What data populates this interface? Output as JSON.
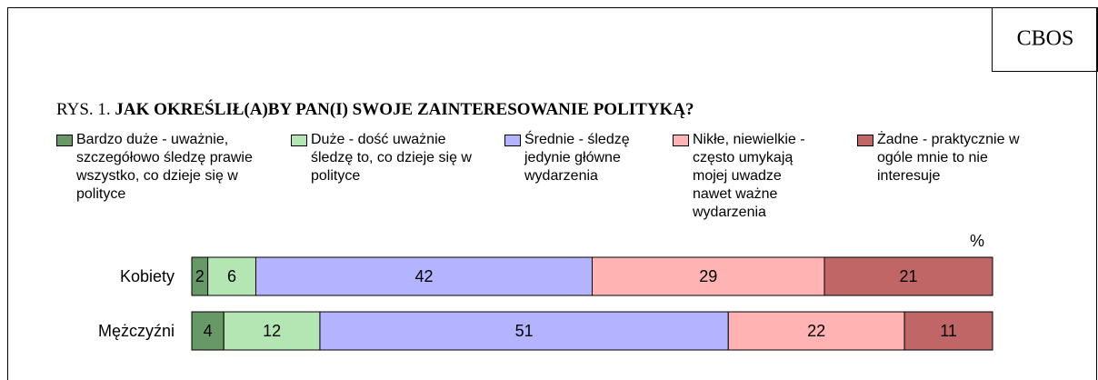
{
  "chart_data": {
    "type": "bar",
    "orientation": "horizontal",
    "stacked": true,
    "source": "CBOS",
    "figure_label": "RYS. 1.",
    "title": "JAK OKREŚLIŁ(A)BY PAN(I) SWOJE ZAINTERESOWANIE POLITYKĄ?",
    "unit": "%",
    "categories": [
      "Kobiety",
      "Mężczyźni"
    ],
    "xlim": [
      0,
      100
    ],
    "series": [
      {
        "name": "Bardzo duże - uważnie, szczegółowo śledzę prawie wszystko, co dzieje się w polityce",
        "color": "#669966",
        "values": [
          2,
          4
        ]
      },
      {
        "name": "Duże - dość uważnie śledzę to, co dzieje się w polityce",
        "color": "#b3e6b3",
        "values": [
          6,
          12
        ]
      },
      {
        "name": "Średnie - śledzę jedynie główne wydarzenia",
        "color": "#b3b3ff",
        "values": [
          42,
          51
        ]
      },
      {
        "name": "Nikłe, niewielkie - często umykają mojej uwadze nawet ważne wydarzenia",
        "color": "#ffb3b3",
        "values": [
          29,
          22
        ]
      },
      {
        "name": "Żadne - praktycznie w ogóle mnie to nie interesuje",
        "color": "#c06666",
        "values": [
          21,
          11
        ]
      }
    ]
  }
}
